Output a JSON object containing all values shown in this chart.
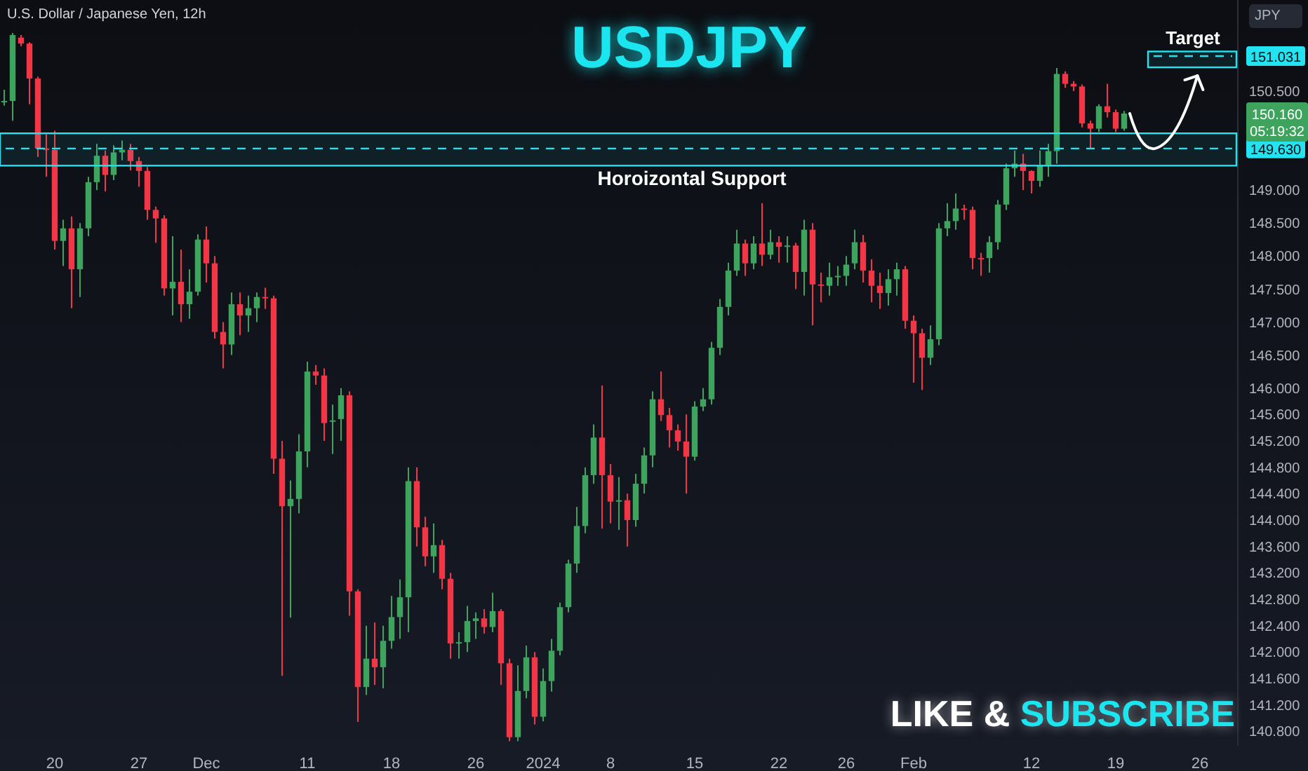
{
  "chart_data": {
    "type": "candlestick",
    "title": "USDJPY",
    "subtitle": "U.S. Dollar / Japanese Yen, 12h",
    "ylabel": "JPY",
    "categories": [
      null,
      null,
      null,
      null,
      null,
      null,
      "20",
      null,
      null,
      null,
      null,
      null,
      null,
      null,
      null,
      null,
      "27",
      null,
      null,
      null,
      null,
      null,
      null,
      null,
      "Dec",
      null,
      null,
      null,
      null,
      null,
      null,
      null,
      null,
      null,
      null,
      null,
      "11",
      null,
      null,
      null,
      null,
      null,
      null,
      null,
      null,
      null,
      "18",
      null,
      null,
      null,
      null,
      null,
      null,
      null,
      null,
      null,
      "26",
      null,
      null,
      null,
      null,
      null,
      null,
      null,
      "2024",
      null,
      null,
      null,
      null,
      null,
      null,
      null,
      "8",
      null,
      null,
      null,
      null,
      null,
      null,
      null,
      null,
      null,
      "15",
      null,
      null,
      null,
      null,
      null,
      null,
      null,
      null,
      null,
      "22",
      null,
      null,
      null,
      null,
      null,
      null,
      null,
      "26",
      null,
      null,
      null,
      null,
      null,
      null,
      null,
      "Feb",
      null,
      null,
      null,
      null,
      null,
      null,
      null,
      null,
      null,
      null,
      null,
      null,
      null,
      "12",
      null,
      null,
      null,
      null,
      null,
      null,
      null,
      null,
      null,
      "19",
      null,
      null,
      null,
      null,
      null,
      null,
      null,
      null,
      null,
      "26",
      null,
      null,
      null,
      null
    ],
    "ohlc": [
      [
        150.33,
        150.52,
        150.28,
        150.35
      ],
      [
        150.35,
        151.38,
        150.05,
        151.35
      ],
      [
        151.31,
        151.35,
        151.18,
        151.22
      ],
      [
        151.22,
        151.24,
        150.3,
        150.69
      ],
      [
        150.69,
        150.72,
        149.5,
        149.63
      ],
      [
        149.63,
        149.85,
        149.2,
        149.61
      ],
      [
        149.61,
        149.9,
        148.1,
        148.23
      ],
      [
        148.23,
        148.55,
        147.85,
        148.42
      ],
      [
        148.42,
        148.6,
        147.21,
        147.8
      ],
      [
        147.8,
        148.5,
        147.38,
        148.42
      ],
      [
        148.42,
        149.2,
        148.3,
        149.12
      ],
      [
        149.12,
        149.7,
        149.0,
        149.52
      ],
      [
        149.52,
        149.6,
        148.98,
        149.23
      ],
      [
        149.23,
        149.68,
        149.15,
        149.57
      ],
      [
        149.57,
        149.75,
        149.45,
        149.61
      ],
      [
        149.61,
        149.7,
        149.3,
        149.44
      ],
      [
        149.44,
        149.5,
        149.05,
        149.29
      ],
      [
        149.29,
        149.35,
        148.55,
        148.7
      ],
      [
        148.7,
        148.75,
        148.2,
        148.57
      ],
      [
        148.57,
        148.62,
        147.4,
        147.51
      ],
      [
        147.51,
        148.3,
        147.1,
        147.61
      ],
      [
        147.61,
        148.1,
        147.0,
        147.27
      ],
      [
        147.27,
        147.8,
        147.05,
        147.46
      ],
      [
        147.46,
        148.33,
        147.4,
        148.25
      ],
      [
        148.25,
        148.45,
        147.6,
        147.89
      ],
      [
        147.89,
        148.0,
        146.75,
        146.85
      ],
      [
        146.85,
        147.0,
        146.3,
        146.66
      ],
      [
        146.66,
        147.45,
        146.5,
        147.27
      ],
      [
        147.27,
        147.45,
        146.8,
        147.1
      ],
      [
        147.1,
        147.4,
        146.85,
        147.21
      ],
      [
        147.21,
        147.45,
        147.0,
        147.38
      ],
      [
        147.38,
        147.52,
        147.2,
        147.36
      ],
      [
        147.36,
        147.4,
        144.7,
        144.93
      ],
      [
        144.93,
        145.2,
        141.64,
        144.21
      ],
      [
        144.21,
        144.6,
        142.52,
        144.32
      ],
      [
        144.32,
        145.3,
        144.1,
        145.04
      ],
      [
        145.04,
        146.4,
        144.8,
        146.25
      ],
      [
        146.25,
        146.35,
        146.05,
        146.19
      ],
      [
        146.19,
        146.3,
        145.2,
        145.47
      ],
      [
        145.49,
        145.75,
        145.0,
        145.51
      ],
      [
        145.53,
        146.0,
        145.2,
        145.89
      ],
      [
        145.89,
        145.95,
        142.55,
        142.92
      ],
      [
        142.92,
        142.95,
        140.94,
        141.47
      ],
      [
        141.47,
        142.4,
        141.35,
        141.9
      ],
      [
        141.9,
        142.45,
        141.5,
        141.77
      ],
      [
        141.77,
        142.4,
        141.45,
        142.17
      ],
      [
        142.17,
        142.85,
        142.05,
        142.53
      ],
      [
        142.53,
        143.1,
        142.2,
        142.83
      ],
      [
        142.83,
        144.8,
        142.3,
        144.59
      ],
      [
        144.59,
        144.8,
        143.6,
        143.89
      ],
      [
        143.89,
        144.05,
        143.3,
        143.45
      ],
      [
        143.45,
        143.95,
        143.2,
        143.62
      ],
      [
        143.62,
        143.7,
        142.95,
        143.11
      ],
      [
        143.11,
        143.2,
        141.9,
        142.13
      ],
      [
        142.13,
        142.3,
        141.9,
        142.15
      ],
      [
        142.15,
        142.7,
        142.0,
        142.47
      ],
      [
        142.47,
        142.6,
        142.2,
        142.51
      ],
      [
        142.51,
        142.65,
        142.28,
        142.38
      ],
      [
        142.38,
        142.9,
        142.3,
        142.62
      ],
      [
        142.62,
        142.65,
        141.5,
        141.83
      ],
      [
        141.83,
        141.9,
        140.65,
        140.71
      ],
      [
        140.71,
        141.8,
        140.65,
        141.41
      ],
      [
        141.41,
        142.1,
        141.3,
        141.92
      ],
      [
        141.92,
        142.0,
        140.9,
        141.02
      ],
      [
        141.02,
        141.75,
        140.95,
        141.56
      ],
      [
        141.56,
        142.2,
        141.4,
        142.02
      ],
      [
        142.02,
        142.75,
        141.95,
        142.68
      ],
      [
        142.68,
        143.4,
        142.6,
        143.34
      ],
      [
        143.34,
        144.2,
        143.2,
        143.91
      ],
      [
        143.91,
        144.8,
        143.8,
        144.68
      ],
      [
        144.68,
        145.45,
        144.55,
        145.25
      ],
      [
        145.25,
        146.04,
        143.87,
        144.68
      ],
      [
        144.68,
        144.85,
        143.95,
        144.28
      ],
      [
        144.28,
        144.65,
        143.85,
        144.3
      ],
      [
        144.3,
        144.4,
        143.6,
        144.0
      ],
      [
        144.0,
        144.7,
        143.9,
        144.55
      ],
      [
        144.55,
        145.1,
        144.4,
        144.98
      ],
      [
        144.98,
        145.95,
        144.8,
        145.83
      ],
      [
        145.83,
        146.25,
        145.5,
        145.59
      ],
      [
        145.59,
        145.7,
        145.1,
        145.36
      ],
      [
        145.36,
        145.45,
        145.05,
        145.19
      ],
      [
        145.19,
        145.6,
        144.4,
        144.96
      ],
      [
        144.96,
        145.8,
        144.9,
        145.72
      ],
      [
        145.72,
        146.0,
        145.65,
        145.83
      ],
      [
        145.83,
        146.7,
        145.75,
        146.61
      ],
      [
        146.61,
        147.35,
        146.5,
        147.23
      ],
      [
        147.23,
        147.9,
        147.1,
        147.78
      ],
      [
        147.78,
        148.4,
        147.7,
        148.19
      ],
      [
        148.19,
        148.25,
        147.7,
        147.89
      ],
      [
        147.89,
        148.3,
        147.8,
        148.19
      ],
      [
        148.19,
        148.8,
        147.85,
        148.02
      ],
      [
        148.02,
        148.4,
        147.95,
        148.21
      ],
      [
        148.21,
        148.3,
        147.9,
        148.14
      ],
      [
        148.14,
        148.3,
        147.9,
        148.16
      ],
      [
        148.16,
        148.2,
        147.5,
        147.76
      ],
      [
        147.76,
        148.55,
        147.4,
        148.4
      ],
      [
        148.4,
        148.5,
        146.95,
        147.57
      ],
      [
        147.57,
        147.75,
        147.3,
        147.55
      ],
      [
        147.55,
        147.9,
        147.4,
        147.68
      ],
      [
        147.68,
        147.85,
        147.55,
        147.7
      ],
      [
        147.7,
        148.0,
        147.55,
        147.87
      ],
      [
        147.89,
        148.4,
        147.8,
        148.21
      ],
      [
        148.21,
        148.32,
        147.6,
        147.78
      ],
      [
        147.78,
        147.95,
        147.3,
        147.55
      ],
      [
        147.55,
        147.75,
        147.2,
        147.44
      ],
      [
        147.44,
        147.8,
        147.25,
        147.65
      ],
      [
        147.65,
        147.9,
        147.4,
        147.8
      ],
      [
        147.8,
        147.85,
        146.9,
        147.02
      ],
      [
        147.02,
        147.1,
        146.08,
        146.83
      ],
      [
        146.83,
        146.9,
        145.97,
        146.46
      ],
      [
        146.46,
        146.95,
        146.35,
        146.74
      ],
      [
        146.74,
        148.5,
        146.65,
        148.42
      ],
      [
        148.42,
        148.8,
        148.3,
        148.53
      ],
      [
        148.53,
        148.95,
        148.4,
        148.72
      ],
      [
        148.72,
        148.78,
        148.55,
        148.7
      ],
      [
        148.7,
        148.75,
        147.8,
        147.97
      ],
      [
        147.97,
        148.05,
        147.7,
        147.95
      ],
      [
        147.97,
        148.3,
        147.75,
        148.21
      ],
      [
        148.21,
        148.85,
        148.1,
        148.78
      ],
      [
        148.78,
        149.4,
        148.7,
        149.33
      ],
      [
        149.33,
        149.6,
        149.2,
        149.4
      ],
      [
        149.4,
        149.55,
        149.0,
        149.29
      ],
      [
        149.29,
        149.3,
        148.95,
        149.14
      ],
      [
        149.14,
        149.6,
        149.05,
        149.38
      ],
      [
        149.38,
        149.7,
        149.2,
        149.59
      ],
      [
        149.59,
        150.85,
        149.4,
        150.76
      ],
      [
        150.76,
        150.8,
        150.55,
        150.61
      ],
      [
        150.61,
        150.65,
        150.5,
        150.57
      ],
      [
        150.57,
        150.6,
        149.95,
        150.01
      ],
      [
        150.01,
        150.05,
        149.62,
        149.93
      ],
      [
        149.93,
        150.3,
        149.88,
        150.27
      ],
      [
        150.27,
        150.61,
        150.1,
        150.18
      ],
      [
        150.18,
        150.22,
        149.88,
        149.93
      ],
      [
        149.93,
        150.2,
        149.9,
        150.16
      ],
      null,
      null,
      null,
      null,
      null,
      null,
      null,
      null,
      null,
      null,
      null,
      null,
      null
    ],
    "colors": [
      "#3da35d",
      "#3da35d",
      "#f23645",
      "#f23645",
      "#f23645",
      "#f23645",
      "#f23645",
      "#3da35d",
      "#f23645",
      "#3da35d",
      "#3da35d",
      "#3da35d",
      "#f23645",
      "#3da35d",
      "#3da35d",
      "#f23645",
      "#f23645",
      "#f23645",
      "#f23645",
      "#f23645",
      "#3da35d",
      "#f23645",
      "#3da35d",
      "#3da35d",
      "#f23645",
      "#f23645",
      "#f23645",
      "#3da35d",
      "#f23645",
      "#3da35d",
      "#3da35d",
      "#f23645",
      "#f23645",
      "#f23645",
      "#3da35d",
      "#3da35d",
      "#3da35d",
      "#f23645",
      "#f23645",
      "#3da35d",
      "#3da35d",
      "#f23645",
      "#f23645",
      "#3da35d",
      "#f23645",
      "#3da35d",
      "#3da35d",
      "#3da35d",
      "#3da35d",
      "#f23645",
      "#f23645",
      "#3da35d",
      "#f23645",
      "#f23645",
      "#3da35d",
      "#3da35d",
      "#3da35d",
      "#f23645",
      "#3da35d",
      "#f23645",
      "#f23645",
      "#3da35d",
      "#3da35d",
      "#f23645",
      "#3da35d",
      "#3da35d",
      "#3da35d",
      "#3da35d",
      "#3da35d",
      "#3da35d",
      "#3da35d",
      "#f23645",
      "#f23645",
      "#3da35d",
      "#f23645",
      "#3da35d",
      "#3da35d",
      "#3da35d",
      "#f23645",
      "#f23645",
      "#f23645",
      "#f23645",
      "#3da35d",
      "#3da35d",
      "#3da35d",
      "#3da35d",
      "#3da35d",
      "#3da35d",
      "#f23645",
      "#3da35d",
      "#f23645",
      "#3da35d",
      "#f23645",
      "#3da35d",
      "#f23645",
      "#3da35d",
      "#f23645",
      "#f23645",
      "#3da35d",
      "#3da35d",
      "#3da35d",
      "#3da35d",
      "#f23645",
      "#f23645",
      "#f23645",
      "#3da35d",
      "#3da35d",
      "#f23645",
      "#f23645",
      "#f23645",
      "#3da35d",
      "#3da35d",
      "#3da35d",
      "#3da35d",
      "#f23645",
      "#f23645",
      "#f23645",
      "#3da35d",
      "#3da35d",
      "#3da35d",
      "#3da35d",
      "#f23645",
      "#f23645",
      "#3da35d",
      "#3da35d",
      "#3da35d",
      "#f23645",
      "#f23645",
      "#f23645",
      "#f23645",
      "#3da35d",
      "#f23645",
      "#f23645",
      "#3da35d",
      null,
      null,
      null,
      null,
      null,
      null,
      null,
      null,
      null,
      null,
      null,
      null,
      null
    ],
    "ylim": [
      140.58,
      151.88
    ],
    "yticks": [
      {
        "value": 150.5,
        "label": "150.500"
      },
      {
        "value": 149,
        "label": "149.000"
      },
      {
        "value": 148.5,
        "label": "148.500"
      },
      {
        "value": 148,
        "label": "148.000"
      },
      {
        "value": 147.5,
        "label": "147.500"
      },
      {
        "value": 147,
        "label": "147.000"
      },
      {
        "value": 146.5,
        "label": "146.500"
      },
      {
        "value": 146,
        "label": "146.000"
      },
      {
        "value": 145.6,
        "label": "145.600"
      },
      {
        "value": 145.2,
        "label": "145.200"
      },
      {
        "value": 144.8,
        "label": "144.800"
      },
      {
        "value": 144.4,
        "label": "144.400"
      },
      {
        "value": 144,
        "label": "144.000"
      },
      {
        "value": 143.6,
        "label": "143.600"
      },
      {
        "value": 143.2,
        "label": "143.200"
      },
      {
        "value": 142.8,
        "label": "142.800"
      },
      {
        "value": 142.4,
        "label": "142.400"
      },
      {
        "value": 142,
        "label": "142.000"
      },
      {
        "value": 141.6,
        "label": "141.600"
      },
      {
        "value": 141.2,
        "label": "141.200"
      },
      {
        "value": 140.8,
        "label": "140.800"
      }
    ],
    "ref_lines": [
      {
        "axis": "y",
        "value": 149.63,
        "label": "149.630",
        "color": "#22e3ef",
        "line_style": "dashed"
      },
      {
        "axis": "y",
        "value": 151.031,
        "label": "151.031",
        "color": "#22e3ef",
        "line_style": "dashed"
      }
    ],
    "bands": [
      {
        "axis": "y",
        "from": 149.37,
        "to": 149.86,
        "label": "Horoizontal Support",
        "color": "#22e3ef"
      },
      {
        "axis": "y",
        "from": 150.86,
        "to": 151.1,
        "label": "Target",
        "color": "#22e3ef"
      }
    ],
    "annotations": [
      "LIKE & SUBSCRIBE",
      "150.160",
      "05:19:32"
    ]
  }
}
